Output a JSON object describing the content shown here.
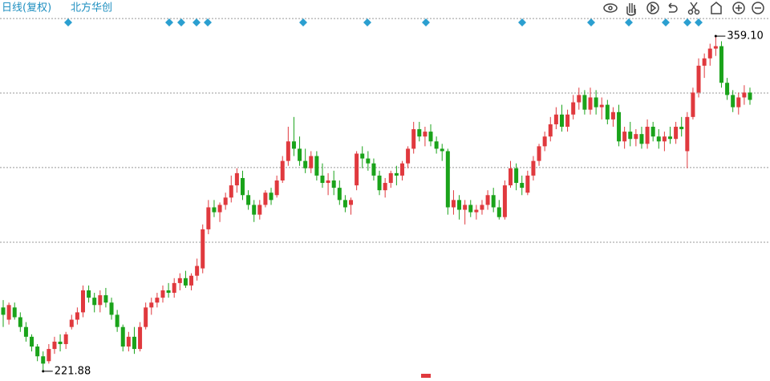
{
  "chart_data": {
    "type": "candlestick",
    "title": "日线(复权)",
    "subtitle": "北方华创",
    "up_color": "#e0393e",
    "down_color": "#1aa31a",
    "ylim": [
      219.2,
      373.9
    ],
    "grid_lines": [
      366.3,
      335.8,
      305.3,
      274.7
    ],
    "open": [
      248,
      243,
      248,
      244,
      240,
      236,
      232,
      228,
      226,
      231,
      234,
      233,
      240,
      243,
      246,
      255,
      252,
      249,
      253,
      250,
      245,
      240,
      232,
      236,
      231,
      240,
      248,
      250,
      252,
      255,
      254,
      258,
      260,
      257,
      261,
      264,
      280,
      289,
      287,
      290,
      293,
      298,
      301,
      294,
      290,
      286,
      290,
      295,
      294,
      300,
      308,
      316,
      313,
      308,
      305,
      310,
      302,
      299,
      300,
      297,
      292,
      290,
      298,
      311,
      309,
      307,
      302,
      296,
      299,
      303,
      302,
      307,
      313,
      321,
      318,
      320,
      316,
      313,
      312,
      289,
      292,
      288,
      290,
      287,
      288,
      290,
      294,
      289,
      285,
      298,
      305,
      299,
      295,
      302,
      308,
      314,
      318,
      323,
      327,
      322,
      327,
      332,
      335,
      329,
      334,
      330,
      331,
      325,
      328,
      316,
      320,
      317,
      319,
      315,
      322,
      318,
      316,
      318,
      317,
      322,
      312,
      326,
      336,
      347,
      350,
      354,
      355,
      340,
      335,
      330,
      334,
      336
    ],
    "high": [
      251,
      250,
      250,
      246,
      242,
      237,
      233,
      230,
      233,
      236,
      237,
      238,
      245,
      248,
      257,
      257,
      254,
      255,
      256,
      252,
      247,
      241,
      238,
      240,
      242,
      250,
      252,
      254,
      257,
      258,
      260,
      262,
      263,
      262,
      268,
      282,
      292,
      292,
      291,
      295,
      302,
      305,
      304,
      296,
      292,
      292,
      296,
      297,
      302,
      310,
      322,
      326,
      318,
      313,
      312,
      312,
      307,
      303,
      304,
      300,
      294,
      293,
      312,
      314,
      312,
      309,
      304,
      301,
      304,
      306,
      308,
      314,
      324,
      324,
      322,
      323,
      318,
      315,
      313,
      296,
      294,
      292,
      292,
      290,
      292,
      296,
      297,
      292,
      300,
      308,
      307,
      302,
      304,
      310,
      315,
      320,
      326,
      330,
      331,
      329,
      335,
      338,
      337,
      338,
      337,
      334,
      333,
      330,
      331,
      322,
      324,
      321,
      322,
      325,
      324,
      321,
      320,
      322,
      324,
      326,
      328,
      338,
      350,
      352,
      356,
      359.1,
      357,
      342,
      337,
      336,
      339,
      338
    ],
    "low": [
      240,
      241,
      243,
      238,
      234,
      230,
      226,
      221.88,
      225,
      229,
      230,
      231,
      239,
      241,
      244,
      250,
      246,
      246,
      248,
      243,
      238,
      230,
      230,
      229,
      230,
      239,
      245,
      248,
      250,
      252,
      252,
      255,
      256,
      255,
      259,
      262,
      278,
      285,
      283,
      288,
      291,
      295,
      292,
      288,
      283,
      284,
      289,
      290,
      293,
      299,
      306,
      310,
      306,
      303,
      303,
      300,
      297,
      294,
      294,
      290,
      287,
      286,
      296,
      305,
      304,
      300,
      294,
      293,
      297,
      298,
      300,
      305,
      311,
      316,
      314,
      314,
      311,
      308,
      286,
      286,
      284,
      282,
      285,
      284,
      286,
      288,
      287,
      284,
      284,
      297,
      296,
      294,
      294,
      300,
      306,
      312,
      316,
      321,
      320,
      320,
      325,
      329,
      327,
      327,
      327,
      325,
      323,
      322,
      314,
      313,
      314,
      314,
      313,
      313,
      316,
      313,
      312,
      315,
      315,
      318,
      305,
      325,
      334,
      342,
      347,
      351,
      338,
      333,
      328,
      327,
      331,
      331
    ],
    "close": [
      245,
      249,
      244,
      240,
      236,
      232,
      228,
      225,
      231,
      234,
      233,
      237,
      243,
      246,
      255,
      252,
      249,
      253,
      250,
      245,
      240,
      232,
      236,
      231,
      240,
      248,
      250,
      252,
      255,
      254,
      258,
      260,
      257,
      261,
      265,
      280,
      289,
      287,
      290,
      293,
      298,
      303,
      294,
      290,
      286,
      290,
      295,
      292,
      300,
      308,
      316,
      313,
      308,
      305,
      310,
      302,
      299,
      300,
      297,
      292,
      289,
      292,
      311,
      309,
      307,
      302,
      296,
      299,
      303,
      302,
      307,
      313,
      321,
      318,
      320,
      316,
      313,
      312,
      289,
      292,
      288,
      290,
      287,
      288,
      290,
      294,
      289,
      285,
      298,
      305,
      299,
      297,
      302,
      308,
      314,
      318,
      323,
      327,
      322,
      327,
      332,
      335,
      329,
      334,
      330,
      331,
      325,
      328,
      316,
      320,
      317,
      319,
      315,
      322,
      318,
      316,
      318,
      317,
      322,
      321,
      326,
      336,
      347,
      350,
      354,
      355,
      340,
      335,
      330,
      334,
      336,
      333
    ],
    "annotations": [
      {
        "value": 359.1,
        "label": "359.10"
      },
      {
        "value": 221.88,
        "label": "221.88"
      }
    ]
  }
}
